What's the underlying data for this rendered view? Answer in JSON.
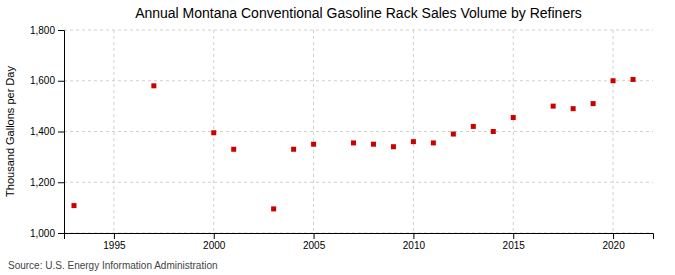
{
  "chart_data": {
    "type": "scatter",
    "title": "Annual Montana Conventional Gasoline Rack Sales Volume by Refiners",
    "ylabel": "Thousand Gallons per Day",
    "source": "Source: U.S. Energy Information Administration",
    "x": [
      1993,
      1997,
      2000,
      2001,
      2003,
      2004,
      2005,
      2007,
      2008,
      2009,
      2010,
      2011,
      2012,
      2013,
      2014,
      2015,
      2017,
      2018,
      2019,
      2020,
      2021
    ],
    "values": [
      1108,
      1580,
      1395,
      1330,
      1095,
      1330,
      1350,
      1355,
      1350,
      1340,
      1360,
      1355,
      1390,
      1420,
      1400,
      1455,
      1500,
      1490,
      1510,
      1600,
      1605
    ],
    "color": "#cc0000",
    "marker": "square",
    "xlim": [
      1992.5,
      2022
    ],
    "ylim": [
      1000,
      1800
    ],
    "xticks": [
      1995,
      2000,
      2005,
      2010,
      2015,
      2020
    ],
    "yticks": [
      {
        "value": 1000,
        "label": "1,000"
      },
      {
        "value": 1200,
        "label": "1,200"
      },
      {
        "value": 1400,
        "label": "1,400"
      },
      {
        "value": 1600,
        "label": "1,600"
      },
      {
        "value": 1800,
        "label": "1,800"
      }
    ],
    "grid": true
  }
}
